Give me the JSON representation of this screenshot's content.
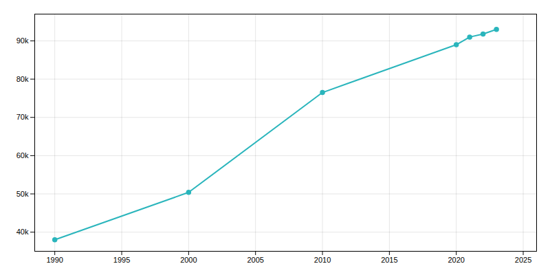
{
  "chart_data": {
    "type": "line",
    "x": [
      1990,
      2000,
      2010,
      2020,
      2021,
      2022,
      2023
    ],
    "values": [
      38000,
      50400,
      76500,
      89000,
      91000,
      91800,
      93000
    ],
    "color": "#2ab5bc",
    "marker": "circle",
    "xlim": [
      1988.5,
      2026
    ],
    "ylim": [
      35000,
      97000
    ],
    "xticks": [
      1990,
      1995,
      2000,
      2005,
      2010,
      2015,
      2020,
      2025
    ],
    "yticks": [
      {
        "value": 40000,
        "label": "40k"
      },
      {
        "value": 50000,
        "label": "50k"
      },
      {
        "value": 60000,
        "label": "60k"
      },
      {
        "value": 70000,
        "label": "70k"
      },
      {
        "value": 80000,
        "label": "80k"
      },
      {
        "value": 90000,
        "label": "90k"
      }
    ],
    "grid": true
  }
}
